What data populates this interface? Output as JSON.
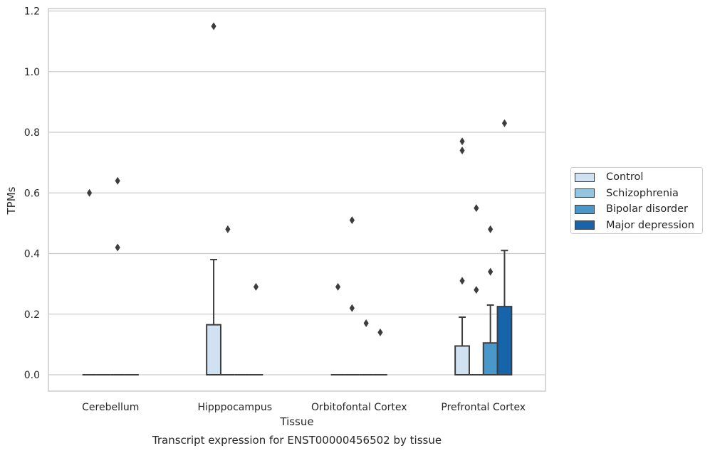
{
  "chart_data": {
    "type": "box",
    "title": "Transcript expression for ENST00000456502 by tissue",
    "xlabel": "Tissue",
    "ylabel": "TPMs",
    "ylim": [
      -0.055,
      1.21
    ],
    "yticks": [
      "0.0",
      "0.2",
      "0.4",
      "0.6",
      "0.8",
      "1.0",
      "1.2"
    ],
    "ytick_values": [
      0,
      0.2,
      0.4,
      0.6,
      0.8,
      1.0,
      1.2
    ],
    "grid": true,
    "legend_position": "right",
    "categories": [
      "Cerebellum",
      "Hipppocampus",
      "Orbitofontal Cortex",
      "Prefrontal Cortex"
    ],
    "series": [
      {
        "name": "Control",
        "color": "#d0e1f2",
        "boxes": [
          {
            "q1": 0,
            "median": 0,
            "q3": 0,
            "whisker_low": 0,
            "whisker_high": 0,
            "outliers": [
              0.6
            ]
          },
          {
            "q1": 0,
            "median": 0,
            "q3": 0.165,
            "whisker_low": 0,
            "whisker_high": 0.38,
            "outliers": [
              1.15
            ]
          },
          {
            "q1": 0,
            "median": 0,
            "q3": 0,
            "whisker_low": 0,
            "whisker_high": 0,
            "outliers": [
              0.29
            ]
          },
          {
            "q1": 0,
            "median": 0,
            "q3": 0.095,
            "whisker_low": 0,
            "whisker_high": 0.19,
            "outliers": [
              0.31,
              0.74,
              0.77
            ]
          }
        ]
      },
      {
        "name": "Schizophrenia",
        "color": "#94c4df",
        "boxes": [
          {
            "q1": 0,
            "median": 0,
            "q3": 0,
            "whisker_low": 0,
            "whisker_high": 0,
            "outliers": []
          },
          {
            "q1": 0,
            "median": 0,
            "q3": 0,
            "whisker_low": 0,
            "whisker_high": 0,
            "outliers": [
              0.48
            ]
          },
          {
            "q1": 0,
            "median": 0,
            "q3": 0,
            "whisker_low": 0,
            "whisker_high": 0,
            "outliers": [
              0.51,
              0.22
            ]
          },
          {
            "q1": 0,
            "median": 0,
            "q3": 0,
            "whisker_low": 0,
            "whisker_high": 0,
            "outliers": [
              0.55,
              0.28
            ]
          }
        ]
      },
      {
        "name": "Bipolar disorder",
        "color": "#4a98c9",
        "boxes": [
          {
            "q1": 0,
            "median": 0,
            "q3": 0,
            "whisker_low": 0,
            "whisker_high": 0,
            "outliers": [
              0.64,
              0.42
            ]
          },
          {
            "q1": 0,
            "median": 0,
            "q3": 0,
            "whisker_low": 0,
            "whisker_high": 0,
            "outliers": []
          },
          {
            "q1": 0,
            "median": 0,
            "q3": 0,
            "whisker_low": 0,
            "whisker_high": 0,
            "outliers": [
              0.17
            ]
          },
          {
            "q1": 0,
            "median": 0,
            "q3": 0.105,
            "whisker_low": 0,
            "whisker_high": 0.23,
            "outliers": [
              0.48,
              0.34
            ]
          }
        ]
      },
      {
        "name": "Major depression",
        "color": "#1764ab",
        "boxes": [
          {
            "q1": 0,
            "median": 0,
            "q3": 0,
            "whisker_low": 0,
            "whisker_high": 0,
            "outliers": []
          },
          {
            "q1": 0,
            "median": 0,
            "q3": 0,
            "whisker_low": 0,
            "whisker_high": 0,
            "outliers": [
              0.29
            ]
          },
          {
            "q1": 0,
            "median": 0,
            "q3": 0,
            "whisker_low": 0,
            "whisker_high": 0,
            "outliers": [
              0.14
            ]
          },
          {
            "q1": 0,
            "median": 0,
            "q3": 0.225,
            "whisker_low": 0,
            "whisker_high": 0.41,
            "outliers": [
              0.83
            ]
          }
        ]
      }
    ]
  }
}
